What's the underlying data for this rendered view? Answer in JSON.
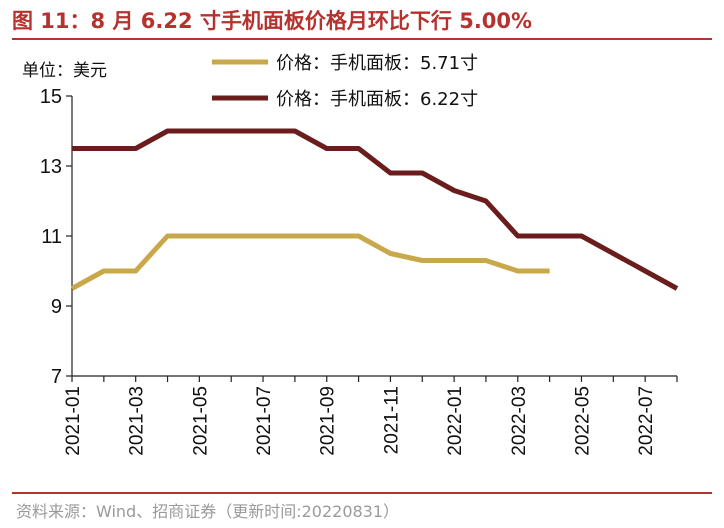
{
  "figure": {
    "title": "图 11：8 月 6.22 寸手机面板价格月环比下行 5.00%",
    "unit": "单位：美元",
    "source": "资料来源：Wind、招商证券（更新时间:20220831）"
  },
  "chart_data": {
    "type": "line",
    "title": "",
    "xlabel": "",
    "ylabel": "",
    "ylim": [
      7,
      15
    ],
    "yticks": [
      7,
      9,
      11,
      13,
      15
    ],
    "x": [
      "2021-01",
      "2021-02",
      "2021-03",
      "2021-04",
      "2021-05",
      "2021-06",
      "2021-07",
      "2021-08",
      "2021-09",
      "2021-10",
      "2021-11",
      "2021-12",
      "2022-01",
      "2022-02",
      "2022-03",
      "2022-04",
      "2022-05",
      "2022-06",
      "2022-07",
      "2022-08"
    ],
    "xtick_labels": [
      "2021-01",
      "2021-03",
      "2021-05",
      "2021-07",
      "2021-09",
      "2021-11",
      "2022-01",
      "2022-03",
      "2022-05",
      "2022-07"
    ],
    "legend_position": "top-center",
    "grid": false,
    "series": [
      {
        "name": "价格：手机面板：5.71寸",
        "color": "#c9a84c",
        "values": [
          9.5,
          10,
          10,
          11,
          11,
          11,
          11,
          11,
          11,
          11,
          10.5,
          10.3,
          10.3,
          10.3,
          10,
          10,
          null,
          null,
          null,
          null
        ]
      },
      {
        "name": "价格：手机面板：6.22寸",
        "color": "#6b1c1c",
        "values": [
          13.5,
          13.5,
          13.5,
          14,
          14,
          14,
          14,
          14,
          13.5,
          13.5,
          12.8,
          12.8,
          12.3,
          12,
          11,
          11,
          11,
          10.5,
          10,
          9.5
        ]
      }
    ]
  }
}
